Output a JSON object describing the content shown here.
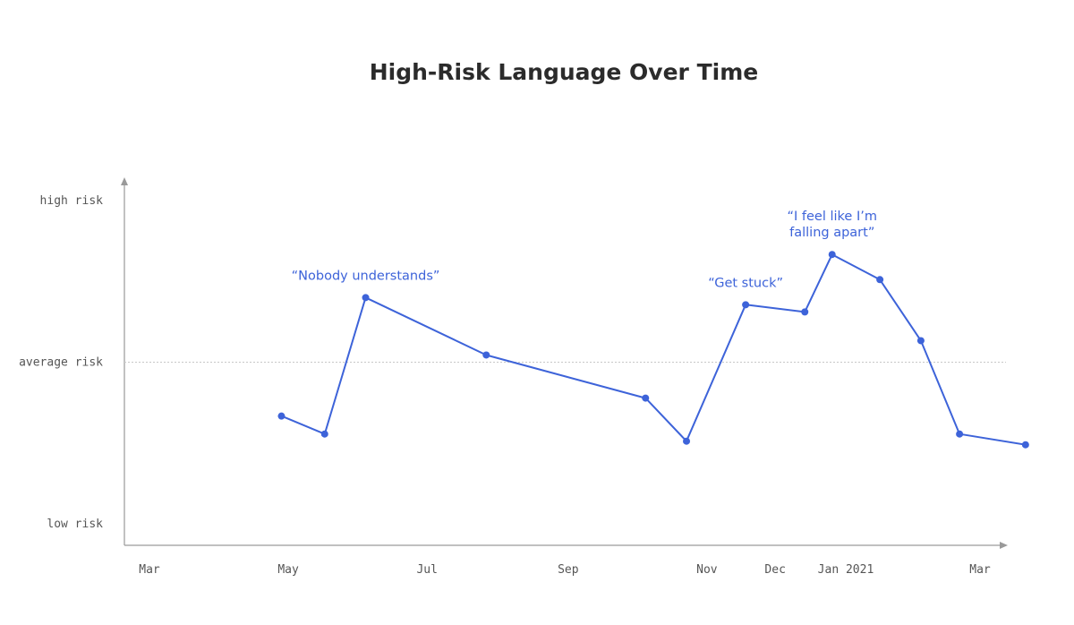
{
  "chart_data": {
    "type": "line",
    "title": "High-Risk Language Over Time",
    "xlabel": "",
    "ylabel": "",
    "x_axis": {
      "type": "date",
      "range": [
        "2020-03-01",
        "2021-03-01"
      ],
      "ticks": [
        {
          "date": "2020-03-01",
          "label": "Mar"
        },
        {
          "date": "2020-05-01",
          "label": "May"
        },
        {
          "date": "2020-07-01",
          "label": "Jul"
        },
        {
          "date": "2020-09-01",
          "label": "Sep"
        },
        {
          "date": "2020-11-01",
          "label": "Nov"
        },
        {
          "date": "2020-12-01",
          "label": "Dec"
        },
        {
          "date": "2021-01-01",
          "label": "Jan 2021"
        },
        {
          "date": "2021-03-01",
          "label": "Mar"
        }
      ]
    },
    "y_axis": {
      "range": [
        0,
        10
      ],
      "ticks": [
        {
          "value": 0.5,
          "label": "low risk"
        },
        {
          "value": 5,
          "label": "average risk"
        },
        {
          "value": 9.5,
          "label": "high risk"
        }
      ],
      "reference_line": 5
    },
    "grid": false,
    "legend": "none",
    "color": "#3d63d9",
    "series": [
      {
        "points": [
          {
            "x": "2020-04-28",
            "y": 3.5
          },
          {
            "x": "2020-05-17",
            "y": 3.0
          },
          {
            "x": "2020-06-04",
            "y": 6.8
          },
          {
            "x": "2020-07-27",
            "y": 5.2
          },
          {
            "x": "2020-10-05",
            "y": 4.0
          },
          {
            "x": "2020-10-23",
            "y": 2.8
          },
          {
            "x": "2020-11-18",
            "y": 6.6
          },
          {
            "x": "2020-12-14",
            "y": 6.4
          },
          {
            "x": "2020-12-26",
            "y": 8.0
          },
          {
            "x": "2021-01-16",
            "y": 7.3
          },
          {
            "x": "2021-02-03",
            "y": 5.6
          },
          {
            "x": "2021-02-20",
            "y": 3.0
          },
          {
            "x": "2021-03-21",
            "y": 2.7
          }
        ]
      }
    ],
    "annotations": [
      {
        "point_index": 2,
        "lines": [
          "“Nobody understands”"
        ]
      },
      {
        "point_index": 6,
        "lines": [
          "“Get stuck”"
        ]
      },
      {
        "point_index": 8,
        "lines": [
          "“I feel like I’m",
          "falling apart”"
        ]
      }
    ]
  }
}
